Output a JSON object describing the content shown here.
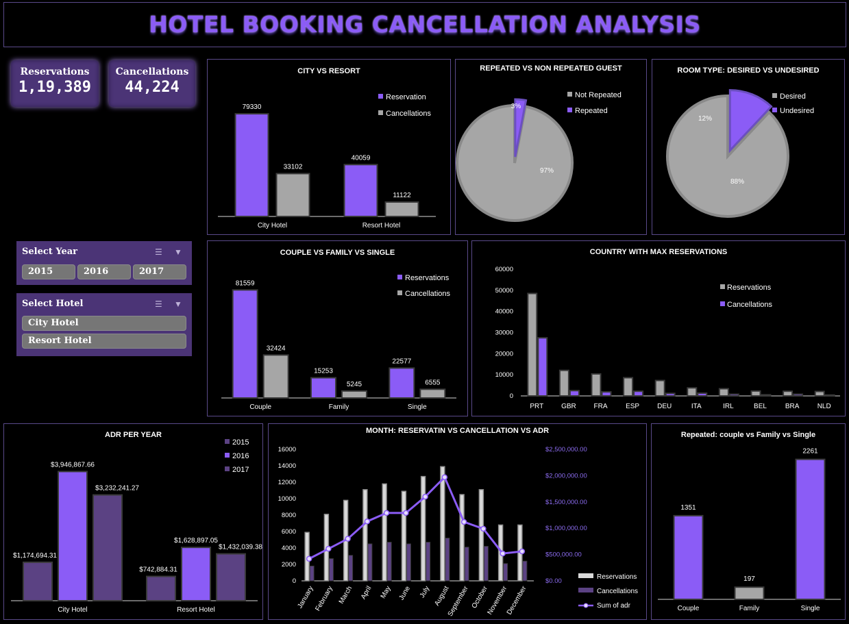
{
  "header": {
    "title": "HOTEL BOOKING CANCELLATION ANALYSIS"
  },
  "kpis": [
    {
      "label": "Reservations",
      "value": "1,19,389"
    },
    {
      "label": "Cancellations",
      "value": "44,224"
    }
  ],
  "slicers": {
    "year": {
      "title": "Select Year",
      "options": [
        "2015",
        "2016",
        "2017"
      ]
    },
    "hotel": {
      "title": "Select Hotel",
      "options": [
        "City Hotel",
        "Resort Hotel"
      ]
    }
  },
  "colors": {
    "purple": "#8b5cf6",
    "gray": "#a6a6a6",
    "dark_purple": "#5b4283",
    "bg": "#000000",
    "border": "#5a4a8a"
  },
  "icons": {
    "multi_select": "multi-select-icon",
    "clear_filter": "clear-filter-icon"
  },
  "chart_data": [
    {
      "id": "city_resort",
      "type": "bar",
      "title": "CITY VS RESORT",
      "categories": [
        "City Hotel",
        "Resort Hotel"
      ],
      "series": [
        {
          "name": "Reservation",
          "values": [
            79330,
            40059
          ]
        },
        {
          "name": "Cancellations",
          "values": [
            33102,
            11122
          ]
        }
      ],
      "ylim": [
        0,
        90000
      ],
      "legend": "top-right",
      "grid": false
    },
    {
      "id": "repeated_guest",
      "type": "pie",
      "title": "REPEATED VS NON REPEATED GUEST",
      "labels": [
        "Not Repeated",
        "Repeated"
      ],
      "values": [
        97,
        3
      ],
      "data_labels": [
        "97%",
        "3%"
      ],
      "legend": "top-right"
    },
    {
      "id": "room_type",
      "type": "pie",
      "title": "ROOM TYPE: DESIRED VS UNDESIRED",
      "labels": [
        "Desired",
        "Undesired"
      ],
      "values": [
        88,
        12
      ],
      "data_labels": [
        "88%",
        "12%"
      ],
      "legend": "top-right"
    },
    {
      "id": "guest_type",
      "type": "bar",
      "title": "COUPLE VS FAMILY VS SINGLE",
      "categories": [
        "Couple",
        "Family",
        "Single"
      ],
      "series": [
        {
          "name": "Reservations",
          "values": [
            81559,
            15253,
            22577
          ]
        },
        {
          "name": "Cancellations",
          "values": [
            32424,
            5245,
            6555
          ]
        }
      ],
      "ylim": [
        0,
        90000
      ],
      "legend": "top-right",
      "grid": false
    },
    {
      "id": "country",
      "type": "bar",
      "title": "COUNTRY WITH MAX RESERVATIONS",
      "categories": [
        "PRT",
        "GBR",
        "FRA",
        "ESP",
        "DEU",
        "ITA",
        "IRL",
        "BEL",
        "BRA",
        "NLD"
      ],
      "series": [
        {
          "name": "Reservations",
          "values": [
            48500,
            12100,
            10400,
            8600,
            7300,
            3800,
            3400,
            2300,
            2200,
            2100
          ]
        },
        {
          "name": "Cancellations",
          "values": [
            27500,
            2500,
            1900,
            2200,
            1200,
            1300,
            800,
            500,
            800,
            400
          ]
        }
      ],
      "yticks": [
        0,
        10000,
        20000,
        30000,
        40000,
        50000,
        60000
      ],
      "ylim": [
        0,
        60000
      ],
      "legend": "top-right",
      "grid": false
    },
    {
      "id": "adr_year",
      "type": "bar",
      "title": "ADR PER YEAR",
      "categories": [
        "City Hotel",
        "Resort Hotel"
      ],
      "series": [
        {
          "name": "2015",
          "values": [
            1174694.31,
            742884.31
          ],
          "labels": [
            "$1,174,694.31",
            "$742,884.31"
          ]
        },
        {
          "name": "2016",
          "values": [
            3946867.66,
            1628897.05
          ],
          "labels": [
            "$3,946,867.66",
            "$1,628,897.05"
          ]
        },
        {
          "name": "2017",
          "values": [
            3232241.27,
            1432039.38
          ],
          "labels": [
            "$3,232,241.27",
            "$1,432,039.38"
          ]
        }
      ],
      "ylim": [
        0,
        4500000
      ],
      "legend": "top-right",
      "grid": false
    },
    {
      "id": "month",
      "type": "bar",
      "title": "MONTH: RESERVATIN VS CANCELLATION VS ADR",
      "categories": [
        "January",
        "February",
        "March",
        "April",
        "May",
        "June",
        "July",
        "August",
        "September",
        "October",
        "November",
        "December"
      ],
      "series": [
        {
          "name": "Reservations",
          "type": "bar",
          "values": [
            5900,
            8100,
            9800,
            11100,
            11800,
            10900,
            12700,
            13900,
            10500,
            11100,
            6800,
            6800
          ]
        },
        {
          "name": "Cancellations",
          "type": "bar",
          "values": [
            1800,
            2700,
            3100,
            4500,
            4700,
            4500,
            4700,
            5200,
            4100,
            4200,
            2100,
            2400
          ]
        },
        {
          "name": "Sum of adr",
          "type": "line",
          "axis": "right",
          "values": [
            420000,
            610000,
            800000,
            1130000,
            1290000,
            1290000,
            1600000,
            1970000,
            1120000,
            990000,
            520000,
            560000
          ]
        }
      ],
      "yticks": [
        0,
        2000,
        4000,
        6000,
        8000,
        10000,
        12000,
        14000,
        16000
      ],
      "ylim": [
        0,
        16000
      ],
      "y2ticks": [
        "$0.00",
        "$500,000.00",
        "$1,000,000.00",
        "$1,500,000.00",
        "$2,000,000.00",
        "$2,500,000.00"
      ],
      "y2lim": [
        0,
        2500000
      ],
      "legend": "bottom-right",
      "grid": false
    },
    {
      "id": "repeated_type",
      "type": "bar",
      "title": "Repeated: couple vs Family vs Single",
      "categories": [
        "Couple",
        "Family",
        "Single"
      ],
      "values": [
        1351,
        197,
        2261
      ],
      "ylim": [
        0,
        2500
      ],
      "grid": false
    }
  ]
}
